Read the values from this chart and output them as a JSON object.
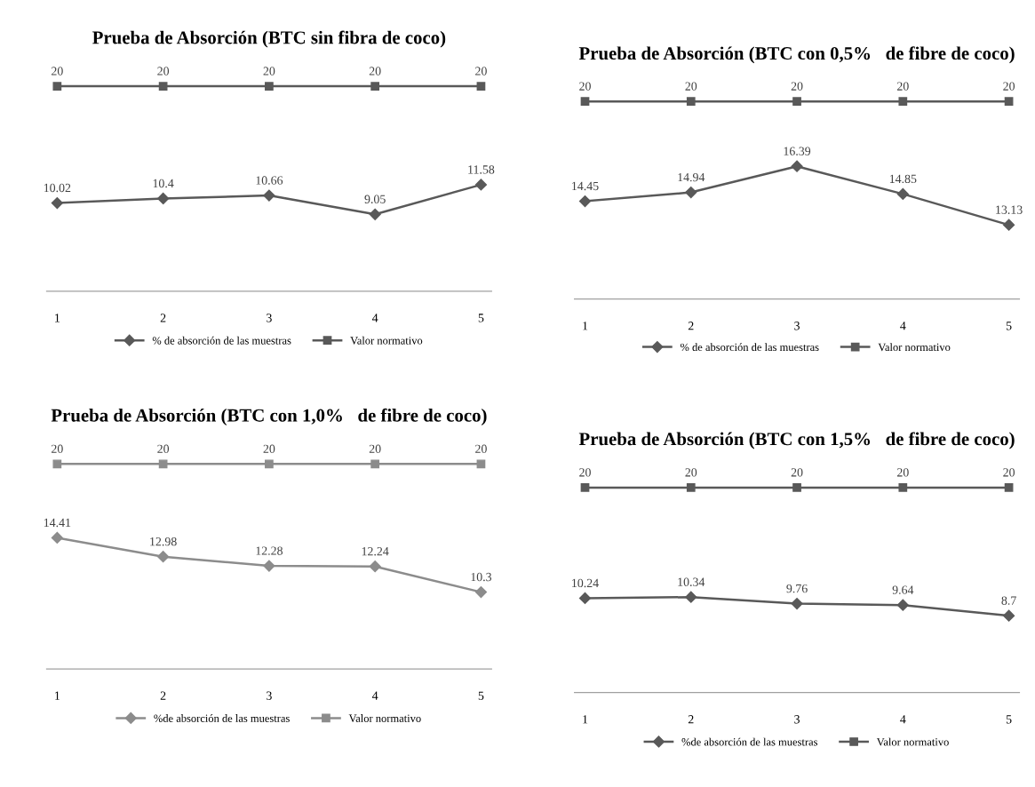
{
  "chart_data": [
    {
      "type": "line",
      "title": "Prueba de Absorción (BTC sin fibra de coco)",
      "categories": [
        "1",
        "2",
        "3",
        "4",
        "5"
      ],
      "data_labels": true,
      "legend": "bottom",
      "grid": false,
      "series": [
        {
          "name": "% de absorción de las muestras",
          "color": "#595959",
          "marker": "diamond",
          "values": [
            10.02,
            10.4,
            10.66,
            9.05,
            11.58
          ]
        },
        {
          "name": "Valor normativo",
          "color": "#595959",
          "marker": "square",
          "values": [
            20,
            20,
            20,
            20,
            20
          ]
        }
      ]
    },
    {
      "type": "line",
      "title": "Prueba de Absorción (BTC con 0,5%   de fibre de coco)",
      "categories": [
        "1",
        "2",
        "3",
        "4",
        "5"
      ],
      "data_labels": true,
      "legend": "bottom",
      "grid": false,
      "series": [
        {
          "name": "% de absorción de las muestras",
          "color": "#595959",
          "marker": "diamond",
          "values": [
            14.45,
            14.94,
            16.39,
            14.85,
            13.13
          ]
        },
        {
          "name": "Valor normativo",
          "color": "#595959",
          "marker": "square",
          "values": [
            20,
            20,
            20,
            20,
            20
          ]
        }
      ]
    },
    {
      "type": "line",
      "title": "Prueba de Absorción (BTC con 1,0%   de fibre de coco)",
      "categories": [
        "1",
        "2",
        "3",
        "4",
        "5"
      ],
      "data_labels": true,
      "legend": "bottom",
      "grid": false,
      "series": [
        {
          "name": "%de absorción de las muestras",
          "color": "#8c8c8c",
          "marker": "diamond",
          "values": [
            14.41,
            12.98,
            12.28,
            12.24,
            10.3
          ]
        },
        {
          "name": "Valor normativo",
          "color": "#8c8c8c",
          "marker": "square",
          "values": [
            20,
            20,
            20,
            20,
            20
          ]
        }
      ]
    },
    {
      "type": "line",
      "title": "Prueba de Absorción (BTC con 1,5%   de fibre de coco)",
      "categories": [
        "1",
        "2",
        "3",
        "4",
        "5"
      ],
      "data_labels": true,
      "legend": "bottom",
      "grid": false,
      "series": [
        {
          "name": "%de absorción de las muestras",
          "color": "#595959",
          "marker": "diamond",
          "values": [
            10.24,
            10.34,
            9.76,
            9.64,
            8.7
          ]
        },
        {
          "name": "Valor normativo",
          "color": "#595959",
          "marker": "square",
          "values": [
            20,
            20,
            20,
            20,
            20
          ]
        }
      ]
    }
  ]
}
